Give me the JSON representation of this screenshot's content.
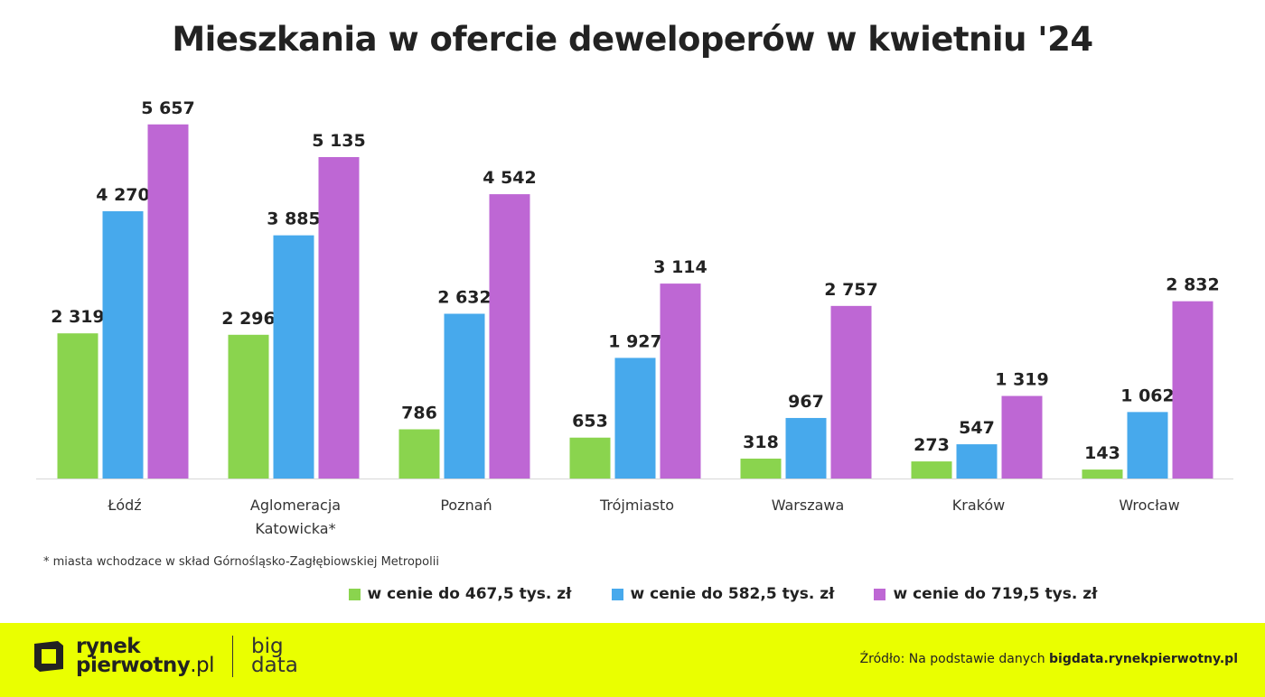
{
  "chart_data": {
    "type": "bar",
    "title": "Mieszkania w ofercie deweloperów w kwietniu '24",
    "categories": [
      [
        "Łódź"
      ],
      [
        "Aglomeracja",
        "Katowicka*"
      ],
      [
        "Poznań"
      ],
      [
        "Trójmiasto"
      ],
      [
        "Warszawa"
      ],
      [
        "Kraków"
      ],
      [
        "Wrocław"
      ]
    ],
    "series": [
      {
        "name": "w cenie do 467,5 tys. zł",
        "color": "#8ad44e",
        "values": [
          2319,
          2296,
          786,
          653,
          318,
          273,
          143
        ],
        "labels": [
          "2 319",
          "2 296",
          "786",
          "653",
          "318",
          "273",
          "143"
        ]
      },
      {
        "name": "w cenie do 582,5 tys. zł",
        "color": "#47a9ec",
        "values": [
          4270,
          3885,
          2632,
          1927,
          967,
          547,
          1062
        ],
        "labels": [
          "4 270",
          "3 885",
          "2 632",
          "1 927",
          "967",
          "547",
          "1 062"
        ]
      },
      {
        "name": "w cenie do 719,5 tys. zł",
        "color": "#be67d4",
        "values": [
          5657,
          5135,
          4542,
          3114,
          2757,
          1319,
          2832
        ],
        "labels": [
          "5 657",
          "5 135",
          "4 542",
          "3 114",
          "2 757",
          "1 319",
          "2 832"
        ]
      }
    ],
    "xlabel": "",
    "ylabel": "",
    "ylim": [
      0,
      6000
    ],
    "grid": false,
    "legend": "bottom"
  },
  "footnote": "* miasta wchodzace w skład Górnośląsko-Zagłębiowskiej Metropolii",
  "footer": {
    "brand_line1": "rynek",
    "brand_line2": "pierwotny",
    "brand_suffix": ".pl",
    "sub_line1": "big",
    "sub_line2": "data",
    "source_prefix": "Źródło: Na podstawie danych ",
    "source_bold": "bigdata.rynekpierwotny.pl",
    "background": "#eaff00"
  }
}
